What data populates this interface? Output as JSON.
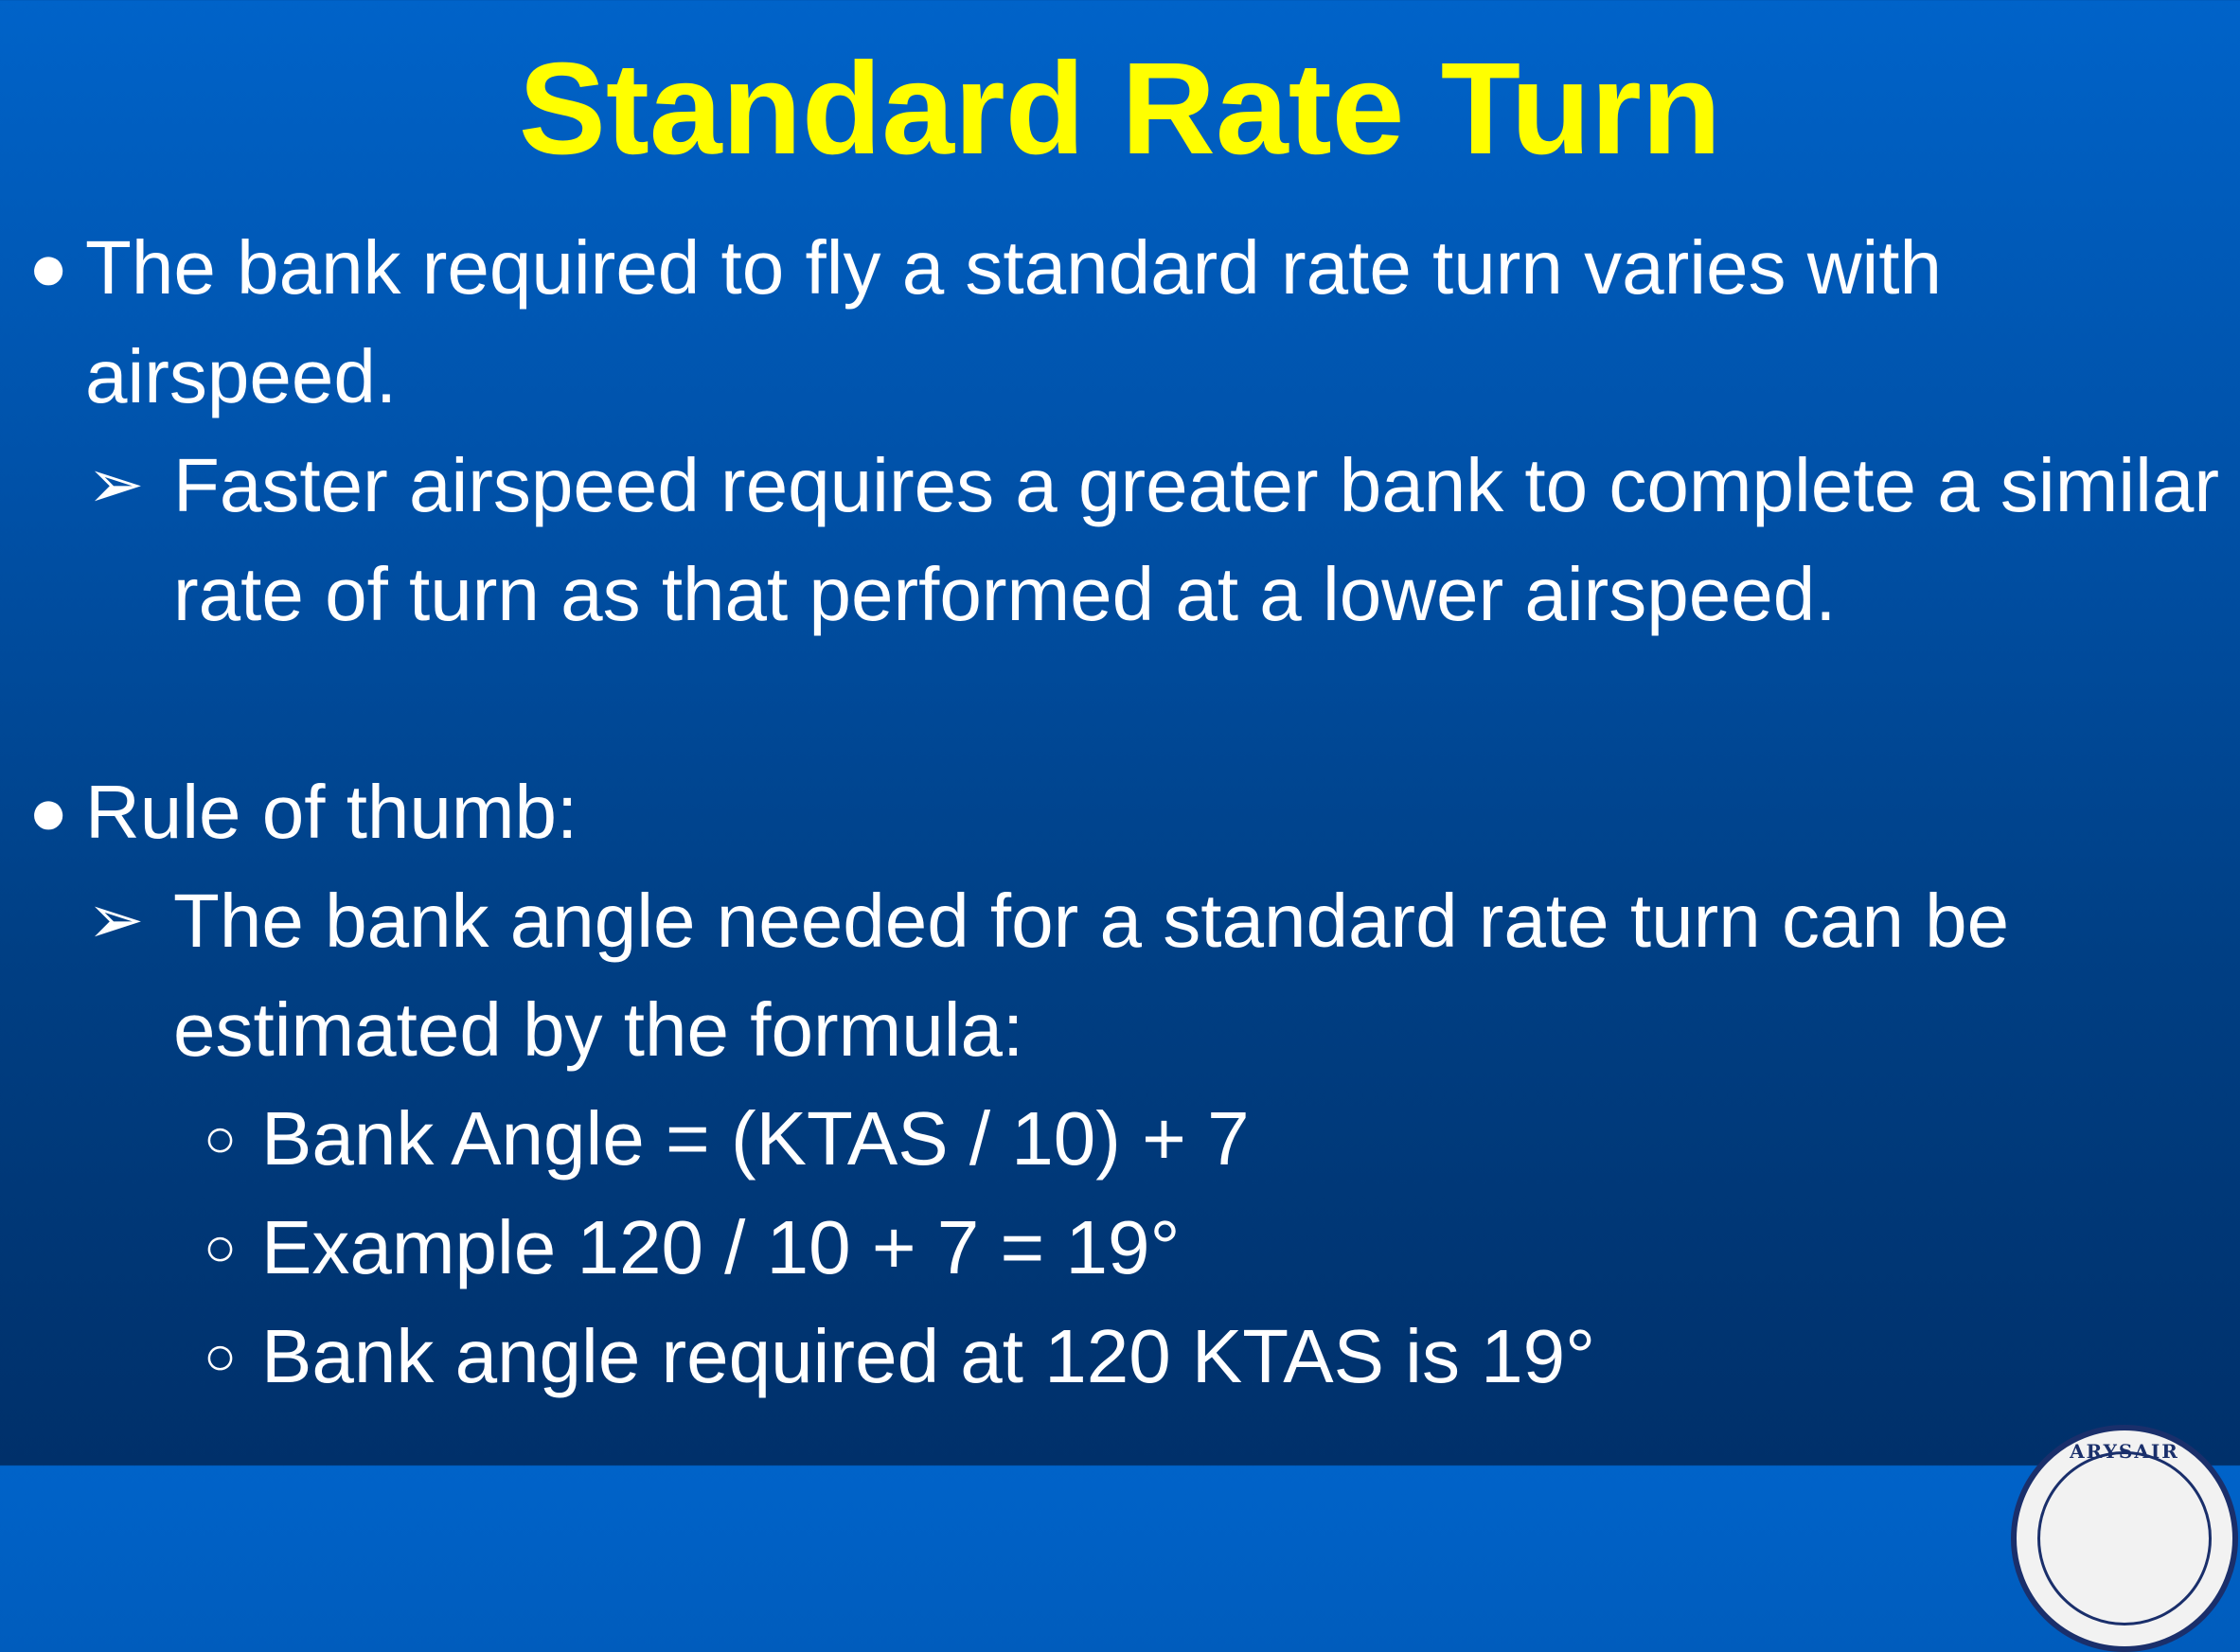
{
  "slide": {
    "title": "Standard Rate Turn",
    "bullets": [
      {
        "level": 1,
        "marker": "●",
        "lines": [
          "The bank required to fly a standard rate turn varies with",
          "airspeed."
        ]
      },
      {
        "level": 2,
        "marker": "➢",
        "lines": [
          "Faster airspeed requires a greater bank to complete a similar",
          "rate of turn as that performed at a lower airspeed."
        ]
      },
      {
        "level": 1,
        "marker": "●",
        "lines": [
          "Rule of thumb:"
        ]
      },
      {
        "level": 2,
        "marker": "➢",
        "lines": [
          "The bank angle needed for a standard rate turn can be",
          "estimated by the formula:"
        ]
      },
      {
        "level": 3,
        "marker": "○",
        "lines": [
          "Bank Angle = (KTAS / 10) + 7"
        ]
      },
      {
        "level": 3,
        "marker": "○",
        "lines": [
          "Example 120 / 10 + 7 = 19°"
        ]
      },
      {
        "level": 3,
        "marker": "○",
        "lines": [
          "Bank angle required at 120 KTAS is 19°"
        ]
      }
    ]
  },
  "seal": {
    "icon": "civil-air-patrol-seal-icon",
    "text": "ARYSAIR"
  },
  "colors": {
    "title": "#ffff00",
    "text": "#ffffff",
    "background_top": "#0063c9",
    "background_bottom": "#00306a"
  }
}
